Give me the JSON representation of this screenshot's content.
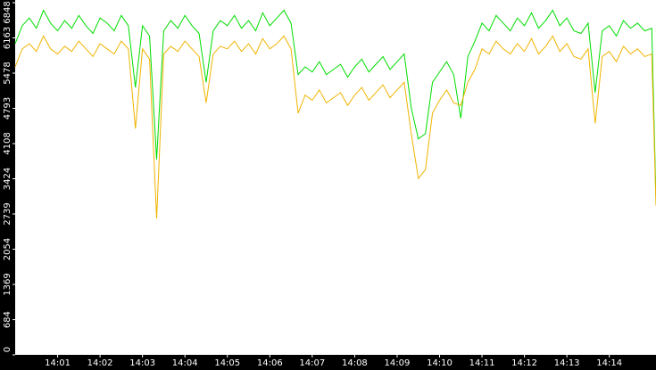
{
  "chart_data": {
    "type": "line",
    "x": [
      0,
      10,
      20,
      30,
      40,
      50,
      60,
      70,
      80,
      90,
      100,
      110,
      120,
      130,
      140,
      150,
      160,
      170,
      180,
      190,
      200,
      210,
      220,
      230,
      240,
      250,
      260,
      270,
      280,
      290,
      300,
      310,
      320,
      330,
      340,
      350,
      360,
      370,
      380,
      390,
      400,
      410,
      420,
      430,
      440,
      450,
      460,
      470,
      480,
      490,
      500,
      510,
      520,
      530,
      540,
      550,
      560,
      570,
      580,
      590,
      600,
      610,
      620,
      630,
      640,
      650,
      660,
      670,
      680,
      690,
      700,
      710,
      720,
      730,
      740,
      750,
      760,
      770,
      780,
      790,
      800,
      810,
      820,
      830,
      840,
      850,
      860,
      870,
      880,
      890,
      900,
      906
    ],
    "series": [
      {
        "name": "series-1",
        "color": "#00dd00",
        "values": [
          6050,
          6400,
          6550,
          6350,
          6700,
          6450,
          6300,
          6500,
          6350,
          6600,
          6400,
          6250,
          6550,
          6450,
          6300,
          6600,
          6400,
          5200,
          6400,
          6200,
          3800,
          6300,
          6500,
          6350,
          6600,
          6400,
          6250,
          5300,
          6300,
          6500,
          6400,
          6600,
          6350,
          6500,
          6300,
          6650,
          6400,
          6550,
          6700,
          6450,
          5450,
          5600,
          5500,
          5700,
          5450,
          5550,
          5650,
          5400,
          5600,
          5750,
          5500,
          5650,
          5800,
          5550,
          5700,
          5850,
          4800,
          4200,
          4300,
          5300,
          5500,
          5700,
          5450,
          4600,
          5800,
          6100,
          6450,
          6300,
          6600,
          6450,
          6300,
          6550,
          6400,
          6650,
          6350,
          6500,
          6700,
          6400,
          6550,
          6300,
          6250,
          6450,
          5100,
          6300,
          6400,
          6200,
          6500,
          6350,
          6450,
          6300,
          6350,
          3000
        ]
      },
      {
        "name": "series-2",
        "color": "#f0b400",
        "values": [
          5600,
          5950,
          6050,
          5900,
          6200,
          5950,
          5850,
          6000,
          5900,
          6100,
          5950,
          5800,
          6050,
          5950,
          5850,
          6100,
          5950,
          4400,
          5950,
          5750,
          2650,
          5850,
          6000,
          5900,
          6100,
          5950,
          5800,
          4900,
          5850,
          6000,
          5950,
          6100,
          5900,
          6050,
          5850,
          6150,
          5950,
          6050,
          6200,
          5950,
          4700,
          5050,
          4950,
          5150,
          4900,
          5000,
          5100,
          4850,
          5050,
          5200,
          4950,
          5100,
          5250,
          5000,
          5150,
          5300,
          4300,
          3430,
          3600,
          4700,
          4950,
          5150,
          4900,
          4850,
          5300,
          5550,
          5950,
          5850,
          6100,
          5950,
          5850,
          6050,
          5900,
          6150,
          5850,
          6000,
          6200,
          5900,
          6050,
          5800,
          5750,
          5950,
          4500,
          5800,
          5900,
          5700,
          6000,
          5850,
          5950,
          5800,
          5850,
          2900
        ]
      }
    ],
    "xlim": [
      0,
      906
    ],
    "xticks": [
      {
        "value": 60,
        "label": "14:01"
      },
      {
        "value": 120,
        "label": "14:02"
      },
      {
        "value": 180,
        "label": "14:03"
      },
      {
        "value": 240,
        "label": "14:04"
      },
      {
        "value": 300,
        "label": "14:05"
      },
      {
        "value": 360,
        "label": "14:06"
      },
      {
        "value": 420,
        "label": "14:07"
      },
      {
        "value": 480,
        "label": "14:08"
      },
      {
        "value": 540,
        "label": "14:09"
      },
      {
        "value": 600,
        "label": "14:10"
      },
      {
        "value": 660,
        "label": "14:11"
      },
      {
        "value": 720,
        "label": "14:12"
      },
      {
        "value": 780,
        "label": "14:13"
      },
      {
        "value": 840,
        "label": "14:14"
      }
    ],
    "ylim": [
      0,
      6900
    ],
    "yticks": [
      0,
      684,
      1369,
      2054,
      2739,
      3424,
      4108,
      4793,
      5478,
      6163,
      6848
    ]
  }
}
